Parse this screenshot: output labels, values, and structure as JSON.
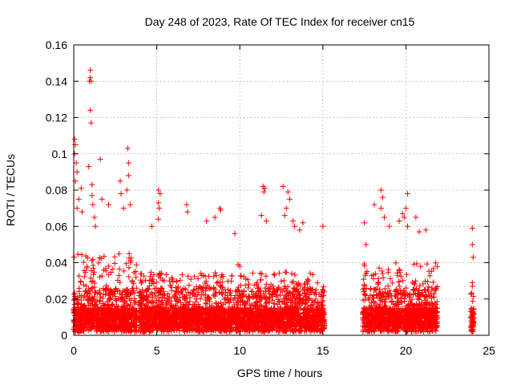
{
  "chart_data": {
    "type": "scatter",
    "title": "Day 248 of 2023, Rate Of TEC Index for receiver cn15",
    "xlabel": "GPS time / hours",
    "ylabel": "ROTI / TECUs",
    "xlim": [
      0,
      25
    ],
    "ylim": [
      0,
      0.16
    ],
    "grid": true,
    "marker": "plus",
    "series_color": "#ff0000",
    "x_ticks": [
      {
        "value": 0,
        "label": "0"
      },
      {
        "value": 5,
        "label": "5"
      },
      {
        "value": 10,
        "label": "10"
      },
      {
        "value": 15,
        "label": "15"
      },
      {
        "value": 20,
        "label": "20"
      },
      {
        "value": 25,
        "label": "25"
      }
    ],
    "y_ticks": [
      {
        "value": 0,
        "label": "0"
      },
      {
        "value": 0.02,
        "label": "0.02"
      },
      {
        "value": 0.04,
        "label": "0.04"
      },
      {
        "value": 0.06,
        "label": "0.06"
      },
      {
        "value": 0.08,
        "label": "0.08"
      },
      {
        "value": 0.1,
        "label": "0.1"
      },
      {
        "value": 0.12,
        "label": "0.12"
      },
      {
        "value": 0.14,
        "label": "0.14"
      },
      {
        "value": 0.16,
        "label": "0.16"
      }
    ],
    "data_segments": [
      {
        "x_start": 0.0,
        "x_end": 3.8,
        "typical_max": 0.045
      },
      {
        "x_start": 3.9,
        "x_end": 15.1,
        "typical_max": 0.035
      },
      {
        "x_start": 17.4,
        "x_end": 21.9,
        "typical_max": 0.04
      },
      {
        "x_start": 23.9,
        "x_end": 24.1,
        "typical_max": 0.012
      }
    ],
    "notable_points": [
      {
        "x": 0.05,
        "y": 0.108
      },
      {
        "x": 0.1,
        "y": 0.105
      },
      {
        "x": 0.05,
        "y": 0.1
      },
      {
        "x": 0.15,
        "y": 0.095
      },
      {
        "x": 0.2,
        "y": 0.09
      },
      {
        "x": 0.1,
        "y": 0.085
      },
      {
        "x": 0.3,
        "y": 0.075
      },
      {
        "x": 0.2,
        "y": 0.07
      },
      {
        "x": 0.45,
        "y": 0.081
      },
      {
        "x": 0.5,
        "y": 0.068
      },
      {
        "x": 1.0,
        "y": 0.146
      },
      {
        "x": 1.0,
        "y": 0.142
      },
      {
        "x": 0.95,
        "y": 0.14
      },
      {
        "x": 1.05,
        "y": 0.14
      },
      {
        "x": 1.0,
        "y": 0.124
      },
      {
        "x": 1.05,
        "y": 0.117
      },
      {
        "x": 0.9,
        "y": 0.093
      },
      {
        "x": 1.1,
        "y": 0.083
      },
      {
        "x": 1.1,
        "y": 0.077
      },
      {
        "x": 1.15,
        "y": 0.072
      },
      {
        "x": 1.25,
        "y": 0.065
      },
      {
        "x": 1.3,
        "y": 0.06
      },
      {
        "x": 1.6,
        "y": 0.097
      },
      {
        "x": 1.7,
        "y": 0.075
      },
      {
        "x": 2.1,
        "y": 0.072
      },
      {
        "x": 2.8,
        "y": 0.085
      },
      {
        "x": 2.85,
        "y": 0.078
      },
      {
        "x": 3.0,
        "y": 0.07
      },
      {
        "x": 3.25,
        "y": 0.103
      },
      {
        "x": 3.3,
        "y": 0.095
      },
      {
        "x": 3.3,
        "y": 0.088
      },
      {
        "x": 3.2,
        "y": 0.08
      },
      {
        "x": 3.4,
        "y": 0.072
      },
      {
        "x": 5.1,
        "y": 0.08
      },
      {
        "x": 5.2,
        "y": 0.078
      },
      {
        "x": 5.1,
        "y": 0.073
      },
      {
        "x": 5.15,
        "y": 0.07
      },
      {
        "x": 4.7,
        "y": 0.06
      },
      {
        "x": 5.1,
        "y": 0.064
      },
      {
        "x": 6.8,
        "y": 0.072
      },
      {
        "x": 6.85,
        "y": 0.068
      },
      {
        "x": 8.0,
        "y": 0.063
      },
      {
        "x": 8.5,
        "y": 0.065
      },
      {
        "x": 8.8,
        "y": 0.07
      },
      {
        "x": 8.85,
        "y": 0.069
      },
      {
        "x": 9.7,
        "y": 0.056
      },
      {
        "x": 9.9,
        "y": 0.039
      },
      {
        "x": 10.0,
        "y": 0.038
      },
      {
        "x": 11.4,
        "y": 0.082
      },
      {
        "x": 11.5,
        "y": 0.081
      },
      {
        "x": 11.45,
        "y": 0.079
      },
      {
        "x": 11.3,
        "y": 0.066
      },
      {
        "x": 11.6,
        "y": 0.063
      },
      {
        "x": 12.6,
        "y": 0.082
      },
      {
        "x": 12.9,
        "y": 0.079
      },
      {
        "x": 13.0,
        "y": 0.075
      },
      {
        "x": 12.8,
        "y": 0.07
      },
      {
        "x": 12.7,
        "y": 0.066
      },
      {
        "x": 13.2,
        "y": 0.063
      },
      {
        "x": 13.3,
        "y": 0.06
      },
      {
        "x": 13.8,
        "y": 0.062
      },
      {
        "x": 13.6,
        "y": 0.058
      },
      {
        "x": 15.0,
        "y": 0.06
      },
      {
        "x": 17.5,
        "y": 0.062
      },
      {
        "x": 17.6,
        "y": 0.05
      },
      {
        "x": 18.5,
        "y": 0.08
      },
      {
        "x": 18.6,
        "y": 0.076
      },
      {
        "x": 18.5,
        "y": 0.07
      },
      {
        "x": 18.7,
        "y": 0.065
      },
      {
        "x": 18.1,
        "y": 0.072
      },
      {
        "x": 19.0,
        "y": 0.06
      },
      {
        "x": 19.6,
        "y": 0.063
      },
      {
        "x": 19.8,
        "y": 0.067
      },
      {
        "x": 19.9,
        "y": 0.065
      },
      {
        "x": 20.1,
        "y": 0.078
      },
      {
        "x": 20.0,
        "y": 0.07
      },
      {
        "x": 20.1,
        "y": 0.06
      },
      {
        "x": 20.6,
        "y": 0.065
      },
      {
        "x": 20.8,
        "y": 0.057
      },
      {
        "x": 21.2,
        "y": 0.058
      },
      {
        "x": 24.0,
        "y": 0.059
      },
      {
        "x": 24.0,
        "y": 0.05
      },
      {
        "x": 24.05,
        "y": 0.043
      },
      {
        "x": 24.0,
        "y": 0.029
      },
      {
        "x": 24.0,
        "y": 0.027
      },
      {
        "x": 24.0,
        "y": 0.013
      },
      {
        "x": 24.0,
        "y": 0.011
      },
      {
        "x": 24.0,
        "y": 0.008
      },
      {
        "x": 24.0,
        "y": 0.006
      },
      {
        "x": 24.05,
        "y": 0.005
      }
    ]
  }
}
